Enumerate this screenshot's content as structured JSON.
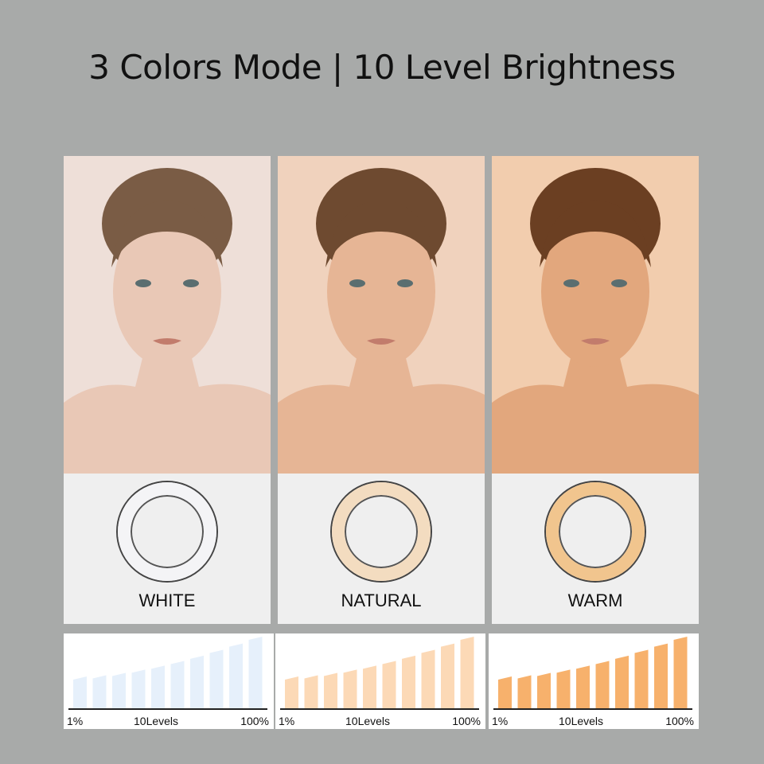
{
  "title": "3 Colors Mode | 10 Level Brightness",
  "modes": [
    {
      "label": "WHITE",
      "ring_color": "#f4f4f6",
      "bg": "#eedfd8",
      "skin": "#e9c8b6",
      "hair": "#7a5c45",
      "bar_color": "#e6f0fb"
    },
    {
      "label": "NATURAL",
      "ring_color": "#f3dcc0",
      "bg": "#f0d2bd",
      "skin": "#e6b595",
      "hair": "#6e4a30",
      "bar_color": "#fcd9b6"
    },
    {
      "label": "WARM",
      "ring_color": "#f1c58e",
      "bg": "#f2cdae",
      "skin": "#e2a77d",
      "hair": "#6b3f22",
      "bar_color": "#f7b16c"
    }
  ],
  "brightness": {
    "levels": 10,
    "min_label": "1%",
    "mid_label": "10Levels",
    "max_label": "100%"
  }
}
